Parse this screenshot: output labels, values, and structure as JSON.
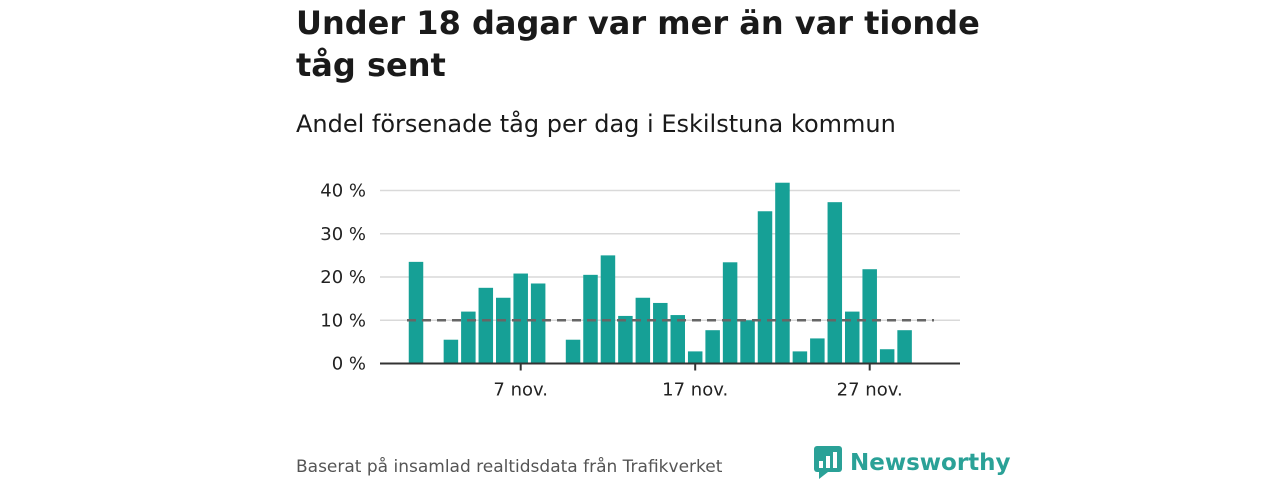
{
  "title": "Under 18 dagar var mer än var tionde tåg sent",
  "subtitle": "Andel försenade tåg per dag i Eskilstuna kommun",
  "footer": "Baserat på insamlad realtidsdata från Trafikverket",
  "brand": "Newsworthy",
  "colors": {
    "bar": "#16a096",
    "reference": "#666666",
    "brand": "#2aa197"
  },
  "chart_data": {
    "type": "bar",
    "x": [
      1,
      2,
      3,
      4,
      5,
      6,
      7,
      8,
      9,
      10,
      11,
      12,
      13,
      14,
      15,
      16,
      17,
      18,
      19,
      20,
      21,
      22,
      23,
      24,
      25,
      26,
      27,
      28,
      29,
      30
    ],
    "values": [
      23.5,
      null,
      5.5,
      12,
      17.5,
      15.2,
      20.8,
      18.5,
      null,
      5.5,
      20.5,
      25,
      11,
      15.2,
      14,
      11.2,
      2.8,
      7.7,
      23.4,
      10,
      35.2,
      41.8,
      2.8,
      5.8,
      37.3,
      12,
      21.8,
      3.3,
      7.7,
      null
    ],
    "x_ticks": [
      {
        "x": 7,
        "label": "7 nov."
      },
      {
        "x": 17,
        "label": "17 nov."
      },
      {
        "x": 27,
        "label": "27 nov."
      }
    ],
    "y_ticks": [
      {
        "y": 0,
        "label": "0 %"
      },
      {
        "y": 10,
        "label": "10 %"
      },
      {
        "y": 20,
        "label": "20 %"
      },
      {
        "y": 30,
        "label": "30 %"
      },
      {
        "y": 40,
        "label": "40 %"
      }
    ],
    "ylim": [
      0,
      40
    ],
    "reference_line": 10,
    "grid": true
  }
}
